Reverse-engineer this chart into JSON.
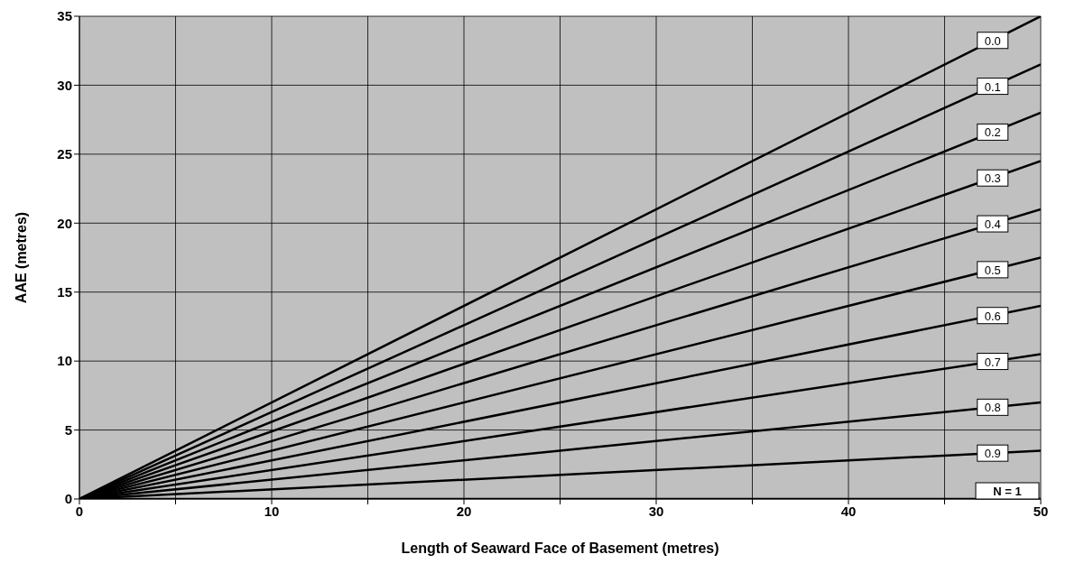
{
  "chart_data": {
    "type": "line",
    "xlabel": "Length of Seaward Face of Basement (metres)",
    "ylabel": "AAE (metres)",
    "xlim": [
      0,
      50
    ],
    "ylim": [
      0,
      35
    ],
    "xticks": [
      0,
      {
        "value": 5,
        "label": null
      },
      10,
      {
        "value": 15,
        "label": null
      },
      20,
      {
        "value": 25,
        "label": null
      },
      30,
      {
        "value": 35,
        "label": null
      },
      40,
      {
        "value": 45,
        "label": null
      },
      50
    ],
    "yticks": [
      0,
      5,
      10,
      15,
      20,
      25,
      30,
      35
    ],
    "grid": true,
    "legend": false,
    "marker": "none",
    "line_style": "solid",
    "x": [
      0,
      50
    ],
    "series": [
      {
        "name": "0.0",
        "color": "#000000",
        "values": [
          0,
          35
        ]
      },
      {
        "name": "0.1",
        "color": "#000000",
        "values": [
          0,
          31.5
        ]
      },
      {
        "name": "0.2",
        "color": "#000000",
        "values": [
          0,
          28
        ]
      },
      {
        "name": "0.3",
        "color": "#000000",
        "values": [
          0,
          24.5
        ]
      },
      {
        "name": "0.4",
        "color": "#000000",
        "values": [
          0,
          21
        ]
      },
      {
        "name": "0.5",
        "color": "#000000",
        "values": [
          0,
          17.5
        ]
      },
      {
        "name": "0.6",
        "color": "#000000",
        "values": [
          0,
          14
        ]
      },
      {
        "name": "0.7",
        "color": "#000000",
        "values": [
          0,
          10.5
        ]
      },
      {
        "name": "0.8",
        "color": "#000000",
        "values": [
          0,
          7
        ]
      },
      {
        "name": "0.9",
        "color": "#000000",
        "values": [
          0,
          3.5
        ]
      },
      {
        "name": "N = 1",
        "color": "#000000",
        "values": [
          0,
          0
        ]
      }
    ]
  }
}
